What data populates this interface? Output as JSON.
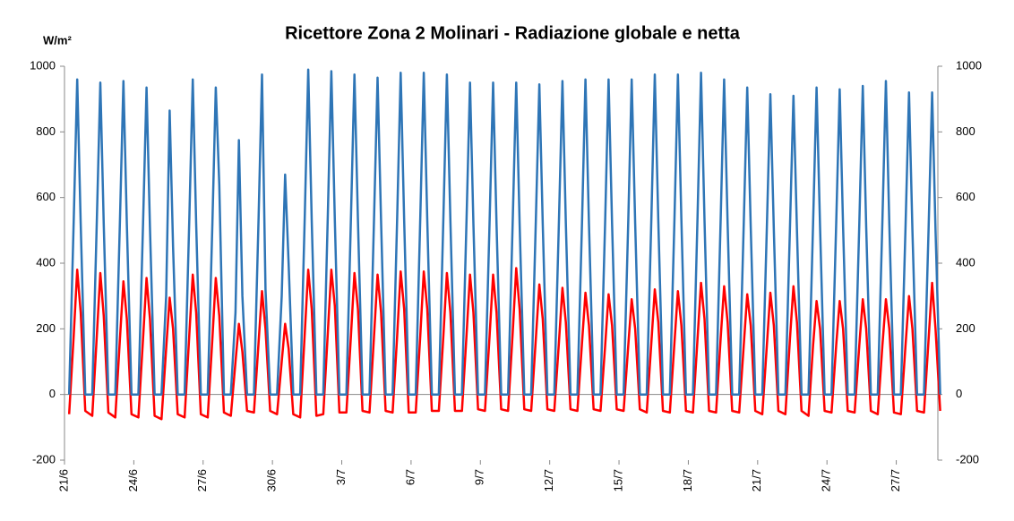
{
  "chart_data": {
    "type": "line",
    "title": "Ricettore Zona 2 Molinari -  Radiazione globale e netta",
    "y_label": "W/m²",
    "xlim": [
      0,
      37.8
    ],
    "xticks": [
      {
        "value": 0,
        "label": "21/6"
      },
      {
        "value": 3,
        "label": "24/6"
      },
      {
        "value": 6,
        "label": "27/6"
      },
      {
        "value": 9,
        "label": "30/6"
      },
      {
        "value": 12,
        "label": "3/7"
      },
      {
        "value": 15,
        "label": "6/7"
      },
      {
        "value": 18,
        "label": "9/7"
      },
      {
        "value": 21,
        "label": "12/7"
      },
      {
        "value": 24,
        "label": "15/7"
      },
      {
        "value": 27,
        "label": "18/7"
      },
      {
        "value": 30,
        "label": "21/7"
      },
      {
        "value": 33,
        "label": "24/7"
      },
      {
        "value": 36,
        "label": "27/7"
      }
    ],
    "ylim": [
      -200,
      1000
    ],
    "yticks": [
      -200,
      0,
      200,
      400,
      600,
      800,
      1000
    ],
    "y2lim": [
      -200,
      1000
    ],
    "y2ticks": [
      -200,
      0,
      200,
      400,
      600,
      800,
      1000
    ],
    "x": [
      0.2,
      0.4,
      0.55,
      0.7,
      0.9,
      1.2,
      1.4,
      1.55,
      1.7,
      1.9,
      2.2,
      2.4,
      2.55,
      2.7,
      2.9,
      3.2,
      3.4,
      3.55,
      3.7,
      3.9,
      4.2,
      4.4,
      4.55,
      4.7,
      4.9,
      5.2,
      5.4,
      5.55,
      5.7,
      5.9,
      6.2,
      6.4,
      6.55,
      6.7,
      6.9,
      7.2,
      7.4,
      7.55,
      7.7,
      7.9,
      8.2,
      8.4,
      8.55,
      8.7,
      8.9,
      9.2,
      9.4,
      9.55,
      9.7,
      9.9,
      10.2,
      10.4,
      10.55,
      10.7,
      10.9,
      11.2,
      11.4,
      11.55,
      11.7,
      11.9,
      12.2,
      12.4,
      12.55,
      12.7,
      12.9,
      13.2,
      13.4,
      13.55,
      13.7,
      13.9,
      14.2,
      14.4,
      14.55,
      14.7,
      14.9,
      15.2,
      15.4,
      15.55,
      15.7,
      15.9,
      16.2,
      16.4,
      16.55,
      16.7,
      16.9,
      17.2,
      17.4,
      17.55,
      17.7,
      17.9,
      18.2,
      18.4,
      18.55,
      18.7,
      18.9,
      19.2,
      19.4,
      19.55,
      19.7,
      19.9,
      20.2,
      20.4,
      20.55,
      20.7,
      20.9,
      21.2,
      21.4,
      21.55,
      21.7,
      21.9,
      22.2,
      22.4,
      22.55,
      22.7,
      22.9,
      23.2,
      23.4,
      23.55,
      23.7,
      23.9,
      24.2,
      24.4,
      24.55,
      24.7,
      24.9,
      25.2,
      25.4,
      25.55,
      25.7,
      25.9,
      26.2,
      26.4,
      26.55,
      26.7,
      26.9,
      27.2,
      27.4,
      27.55,
      27.7,
      27.9,
      28.2,
      28.4,
      28.55,
      28.7,
      28.9,
      29.2,
      29.4,
      29.55,
      29.7,
      29.9,
      30.2,
      30.4,
      30.55,
      30.7,
      30.9,
      31.2,
      31.4,
      31.55,
      31.7,
      31.9,
      32.2,
      32.4,
      32.55,
      32.7,
      32.9,
      33.2,
      33.4,
      33.55,
      33.7,
      33.9,
      34.2,
      34.4,
      34.55,
      34.7,
      34.9,
      35.2,
      35.4,
      35.55,
      35.7,
      35.9,
      36.2,
      36.4,
      36.55,
      36.7,
      36.9,
      37.2,
      37.4,
      37.55,
      37.7,
      37.9
    ],
    "series": [
      {
        "color": "#2e75b6",
        "values": [
          0,
          530,
          960,
          520,
          0,
          0,
          530,
          950,
          520,
          0,
          0,
          530,
          955,
          520,
          0,
          0,
          520,
          935,
          510,
          0,
          0,
          300,
          865,
          450,
          0,
          0,
          530,
          960,
          520,
          0,
          0,
          520,
          935,
          640,
          0,
          0,
          250,
          775,
          300,
          0,
          0,
          540,
          975,
          320,
          0,
          0,
          300,
          670,
          400,
          0,
          0,
          550,
          990,
          530,
          0,
          0,
          550,
          985,
          530,
          0,
          0,
          540,
          975,
          530,
          0,
          0,
          540,
          965,
          530,
          0,
          0,
          540,
          980,
          530,
          0,
          0,
          540,
          980,
          530,
          0,
          0,
          540,
          975,
          530,
          0,
          0,
          530,
          950,
          520,
          0,
          0,
          530,
          950,
          520,
          0,
          0,
          530,
          950,
          520,
          0,
          0,
          530,
          945,
          520,
          0,
          0,
          530,
          955,
          520,
          0,
          0,
          530,
          960,
          520,
          0,
          0,
          530,
          960,
          520,
          0,
          0,
          530,
          960,
          520,
          0,
          0,
          540,
          975,
          530,
          0,
          0,
          540,
          975,
          530,
          0,
          0,
          540,
          980,
          530,
          0,
          0,
          530,
          960,
          520,
          0,
          0,
          520,
          935,
          510,
          0,
          0,
          510,
          915,
          500,
          0,
          0,
          510,
          910,
          500,
          0,
          0,
          520,
          935,
          510,
          0,
          0,
          520,
          930,
          510,
          0,
          0,
          520,
          940,
          510,
          0,
          0,
          530,
          955,
          520,
          0,
          0,
          510,
          920,
          500,
          0,
          0,
          510,
          920,
          500,
          0
        ]
      },
      {
        "color": "#ff0000",
        "values": [
          -60,
          180,
          380,
          250,
          -50,
          -65,
          180,
          370,
          240,
          -55,
          -70,
          170,
          345,
          230,
          -60,
          -70,
          170,
          355,
          230,
          -65,
          -75,
          140,
          295,
          200,
          -60,
          -70,
          180,
          365,
          250,
          -60,
          -70,
          170,
          355,
          240,
          -55,
          -65,
          100,
          215,
          130,
          -50,
          -55,
          160,
          315,
          200,
          -50,
          -60,
          100,
          215,
          140,
          -60,
          -70,
          190,
          380,
          260,
          -65,
          -60,
          190,
          380,
          270,
          -55,
          -55,
          180,
          370,
          260,
          -50,
          -55,
          180,
          365,
          250,
          -50,
          -55,
          180,
          375,
          260,
          -55,
          -55,
          180,
          375,
          260,
          -50,
          -50,
          180,
          370,
          250,
          -50,
          -50,
          180,
          365,
          250,
          -45,
          -50,
          180,
          365,
          250,
          -45,
          -50,
          190,
          385,
          260,
          -45,
          -50,
          170,
          335,
          230,
          -45,
          -50,
          160,
          325,
          220,
          -45,
          -50,
          160,
          310,
          210,
          -45,
          -50,
          150,
          305,
          210,
          -45,
          -50,
          150,
          290,
          200,
          -45,
          -55,
          160,
          320,
          220,
          -50,
          -55,
          160,
          315,
          210,
          -50,
          -55,
          170,
          340,
          230,
          -50,
          -55,
          170,
          330,
          220,
          -50,
          -55,
          150,
          305,
          210,
          -50,
          -60,
          150,
          310,
          210,
          -50,
          -60,
          170,
          330,
          220,
          -50,
          -65,
          150,
          285,
          200,
          -50,
          -55,
          150,
          285,
          200,
          -50,
          -55,
          150,
          290,
          200,
          -50,
          -60,
          150,
          290,
          200,
          -55,
          -60,
          150,
          300,
          200,
          -50,
          -55,
          170,
          340,
          200,
          -50
        ]
      }
    ]
  }
}
